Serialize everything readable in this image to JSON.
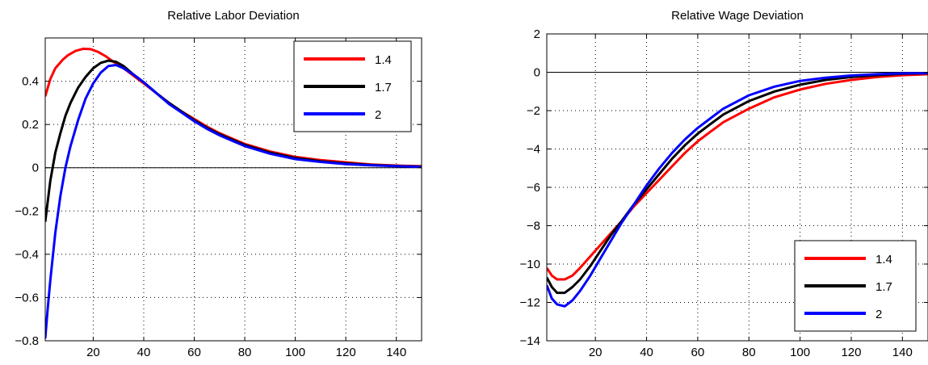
{
  "chart_data": [
    {
      "type": "line",
      "title": "Relative Labor Deviation",
      "xlabel": "",
      "ylabel": "",
      "xlim": [
        1,
        150
      ],
      "ylim": [
        -0.8,
        0.6
      ],
      "xticks": [
        20,
        40,
        60,
        80,
        100,
        120,
        140
      ],
      "xtick_labels": [
        "20",
        "40",
        "60",
        "80",
        "100",
        "120",
        "140"
      ],
      "yticks": [
        -0.8,
        -0.6,
        -0.4,
        -0.2,
        0,
        0.2,
        0.4
      ],
      "ytick_labels": [
        "−0.8",
        "−0.6",
        "−0.4",
        "−0.2",
        "0",
        "0.2",
        "0.4"
      ],
      "grid": true,
      "zero_line": true,
      "legend_position": "top-right",
      "series": [
        {
          "name": "1.4",
          "color": "#ff0000",
          "x": [
            1,
            3,
            5,
            8,
            10,
            13,
            16,
            19,
            22,
            25,
            28,
            32,
            36,
            40,
            45,
            50,
            55,
            60,
            65,
            70,
            75,
            80,
            90,
            100,
            110,
            120,
            130,
            140,
            150
          ],
          "y": [
            0.33,
            0.41,
            0.46,
            0.5,
            0.52,
            0.54,
            0.55,
            0.548,
            0.535,
            0.515,
            0.49,
            0.46,
            0.425,
            0.39,
            0.345,
            0.3,
            0.26,
            0.225,
            0.19,
            0.16,
            0.135,
            0.11,
            0.075,
            0.05,
            0.035,
            0.025,
            0.015,
            0.01,
            0.007
          ]
        },
        {
          "name": "1.7",
          "color": "#000000",
          "x": [
            1,
            3,
            5,
            7,
            9,
            11,
            14,
            17,
            20,
            23,
            26,
            29,
            32,
            36,
            40,
            45,
            50,
            55,
            60,
            65,
            70,
            75,
            80,
            90,
            100,
            110,
            120,
            130,
            140,
            150
          ],
          "y": [
            -0.25,
            -0.06,
            0.07,
            0.16,
            0.24,
            0.3,
            0.37,
            0.42,
            0.46,
            0.485,
            0.495,
            0.49,
            0.47,
            0.43,
            0.395,
            0.345,
            0.3,
            0.26,
            0.22,
            0.185,
            0.155,
            0.13,
            0.105,
            0.07,
            0.045,
            0.03,
            0.02,
            0.013,
            0.008,
            0.005
          ]
        },
        {
          "name": "2",
          "color": "#0000ff",
          "x": [
            1,
            2,
            3,
            5,
            7,
            9,
            11,
            14,
            17,
            20,
            23,
            26,
            29,
            32,
            36,
            40,
            45,
            50,
            55,
            60,
            65,
            70,
            75,
            80,
            90,
            100,
            110,
            120,
            130,
            140,
            150
          ],
          "y": [
            -0.79,
            -0.65,
            -0.52,
            -0.3,
            -0.13,
            0.0,
            0.1,
            0.22,
            0.32,
            0.39,
            0.44,
            0.47,
            0.475,
            0.46,
            0.43,
            0.395,
            0.345,
            0.295,
            0.255,
            0.215,
            0.18,
            0.15,
            0.125,
            0.1,
            0.065,
            0.04,
            0.027,
            0.017,
            0.011,
            0.007,
            0.004
          ]
        }
      ]
    },
    {
      "type": "line",
      "title": "Relative Wage Deviation",
      "xlabel": "",
      "ylabel": "",
      "xlim": [
        1,
        150
      ],
      "ylim": [
        -14,
        2
      ],
      "xticks": [
        20,
        40,
        60,
        80,
        100,
        120,
        140
      ],
      "xtick_labels": [
        "20",
        "40",
        "60",
        "80",
        "100",
        "120",
        "140"
      ],
      "yticks": [
        -14,
        -12,
        -10,
        -8,
        -6,
        -4,
        -2,
        0,
        2
      ],
      "ytick_labels": [
        "−14",
        "−12",
        "−10",
        "−8",
        "−6",
        "−4",
        "−2",
        "0",
        "2"
      ],
      "grid": true,
      "zero_line": true,
      "legend_position": "bottom-right",
      "series": [
        {
          "name": "1.4",
          "color": "#ff0000",
          "x": [
            1,
            3,
            5,
            8,
            11,
            14,
            18,
            22,
            26,
            30,
            35,
            40,
            45,
            50,
            55,
            60,
            65,
            70,
            80,
            90,
            100,
            110,
            120,
            130,
            140,
            150
          ],
          "y": [
            -10.2,
            -10.6,
            -10.8,
            -10.8,
            -10.6,
            -10.2,
            -9.6,
            -9.0,
            -8.4,
            -7.8,
            -7.0,
            -6.3,
            -5.6,
            -4.9,
            -4.2,
            -3.6,
            -3.1,
            -2.6,
            -1.9,
            -1.3,
            -0.9,
            -0.6,
            -0.4,
            -0.25,
            -0.15,
            -0.1
          ]
        },
        {
          "name": "1.7",
          "color": "#000000",
          "x": [
            1,
            3,
            5,
            8,
            11,
            14,
            18,
            22,
            26,
            30,
            35,
            40,
            45,
            50,
            55,
            60,
            65,
            70,
            80,
            90,
            100,
            110,
            120,
            130,
            140,
            150
          ],
          "y": [
            -10.7,
            -11.2,
            -11.5,
            -11.5,
            -11.2,
            -10.8,
            -10.1,
            -9.3,
            -8.5,
            -7.8,
            -6.9,
            -6.1,
            -5.3,
            -4.5,
            -3.8,
            -3.2,
            -2.7,
            -2.2,
            -1.5,
            -1.0,
            -0.65,
            -0.4,
            -0.25,
            -0.15,
            -0.08,
            -0.05
          ]
        },
        {
          "name": "2",
          "color": "#0000ff",
          "x": [
            1,
            3,
            5,
            8,
            11,
            14,
            18,
            22,
            26,
            30,
            35,
            40,
            45,
            50,
            55,
            60,
            65,
            70,
            80,
            90,
            100,
            110,
            120,
            130,
            140,
            150
          ],
          "y": [
            -11.1,
            -11.8,
            -12.1,
            -12.2,
            -11.9,
            -11.4,
            -10.6,
            -9.7,
            -8.8,
            -7.9,
            -6.9,
            -5.9,
            -5.0,
            -4.2,
            -3.5,
            -2.9,
            -2.4,
            -1.9,
            -1.2,
            -0.75,
            -0.45,
            -0.28,
            -0.17,
            -0.1,
            -0.06,
            -0.04
          ]
        }
      ]
    }
  ]
}
